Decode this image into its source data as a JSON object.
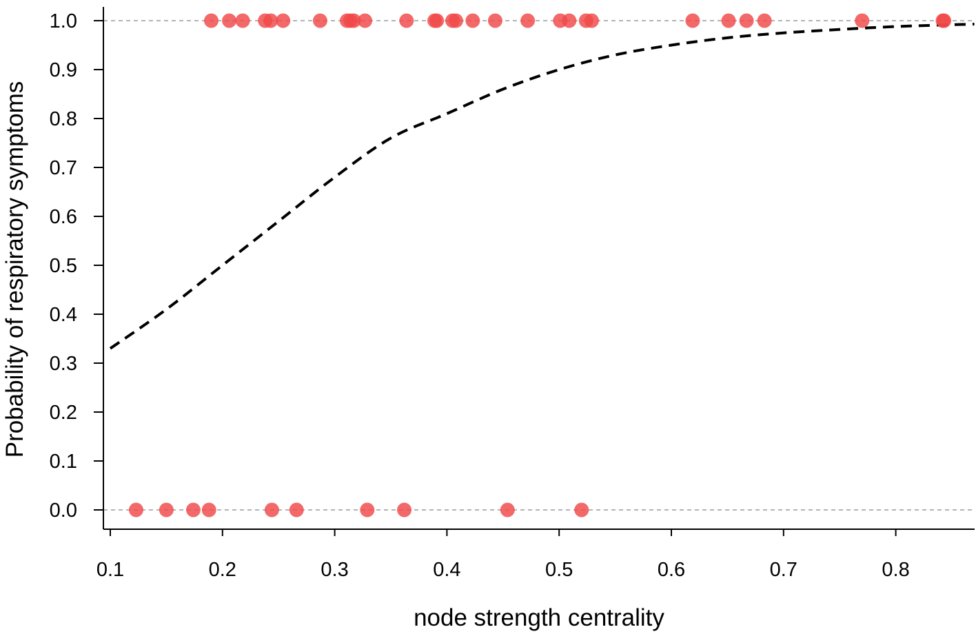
{
  "chart_data": {
    "type": "scatter",
    "title": "",
    "xlabel": "node strength centrality",
    "ylabel": "Probability of respiratory symptoms",
    "xlim": [
      0.1,
      0.87
    ],
    "ylim": [
      0.0,
      1.0
    ],
    "x_ticks": [
      "0.1",
      "0.2",
      "0.3",
      "0.4",
      "0.5",
      "0.6",
      "0.7",
      "0.8"
    ],
    "y_ticks": [
      "0.0",
      "0.1",
      "0.2",
      "0.3",
      "0.4",
      "0.5",
      "0.6",
      "0.7",
      "0.8",
      "0.9",
      "1.0"
    ],
    "reference_lines_y": [
      0.0,
      1.0
    ],
    "point_color": "#f04848",
    "curve_color": "#000000",
    "grid": false,
    "legend": "none",
    "series": [
      {
        "type": "scatter",
        "points": [
          {
            "x": 0.19,
            "y": 1
          },
          {
            "x": 0.206,
            "y": 1
          },
          {
            "x": 0.218,
            "y": 1
          },
          {
            "x": 0.238,
            "y": 1
          },
          {
            "x": 0.243,
            "y": 1
          },
          {
            "x": 0.254,
            "y": 1
          },
          {
            "x": 0.287,
            "y": 1
          },
          {
            "x": 0.311,
            "y": 1
          },
          {
            "x": 0.314,
            "y": 1
          },
          {
            "x": 0.317,
            "y": 1
          },
          {
            "x": 0.327,
            "y": 1
          },
          {
            "x": 0.364,
            "y": 1
          },
          {
            "x": 0.389,
            "y": 1
          },
          {
            "x": 0.391,
            "y": 1
          },
          {
            "x": 0.405,
            "y": 1
          },
          {
            "x": 0.408,
            "y": 1
          },
          {
            "x": 0.423,
            "y": 1
          },
          {
            "x": 0.443,
            "y": 1
          },
          {
            "x": 0.472,
            "y": 1
          },
          {
            "x": 0.501,
            "y": 1
          },
          {
            "x": 0.509,
            "y": 1
          },
          {
            "x": 0.524,
            "y": 1
          },
          {
            "x": 0.529,
            "y": 1
          },
          {
            "x": 0.619,
            "y": 1
          },
          {
            "x": 0.651,
            "y": 1
          },
          {
            "x": 0.667,
            "y": 1
          },
          {
            "x": 0.683,
            "y": 1
          },
          {
            "x": 0.77,
            "y": 1
          },
          {
            "x": 0.842,
            "y": 1
          },
          {
            "x": 0.843,
            "y": 1
          },
          {
            "x": 0.123,
            "y": 0
          },
          {
            "x": 0.15,
            "y": 0
          },
          {
            "x": 0.174,
            "y": 0
          },
          {
            "x": 0.188,
            "y": 0
          },
          {
            "x": 0.244,
            "y": 0
          },
          {
            "x": 0.266,
            "y": 0
          },
          {
            "x": 0.329,
            "y": 0
          },
          {
            "x": 0.362,
            "y": 0
          },
          {
            "x": 0.454,
            "y": 0
          },
          {
            "x": 0.52,
            "y": 0
          }
        ]
      },
      {
        "type": "line",
        "style": "dashed",
        "x": [
          0.1,
          0.15,
          0.2,
          0.25,
          0.3,
          0.35,
          0.4,
          0.45,
          0.5,
          0.55,
          0.6,
          0.65,
          0.7,
          0.75,
          0.8,
          0.87
        ],
        "values": [
          0.33,
          0.41,
          0.5,
          0.59,
          0.68,
          0.76,
          0.81,
          0.86,
          0.9,
          0.93,
          0.95,
          0.965,
          0.975,
          0.982,
          0.988,
          0.993
        ]
      }
    ]
  }
}
